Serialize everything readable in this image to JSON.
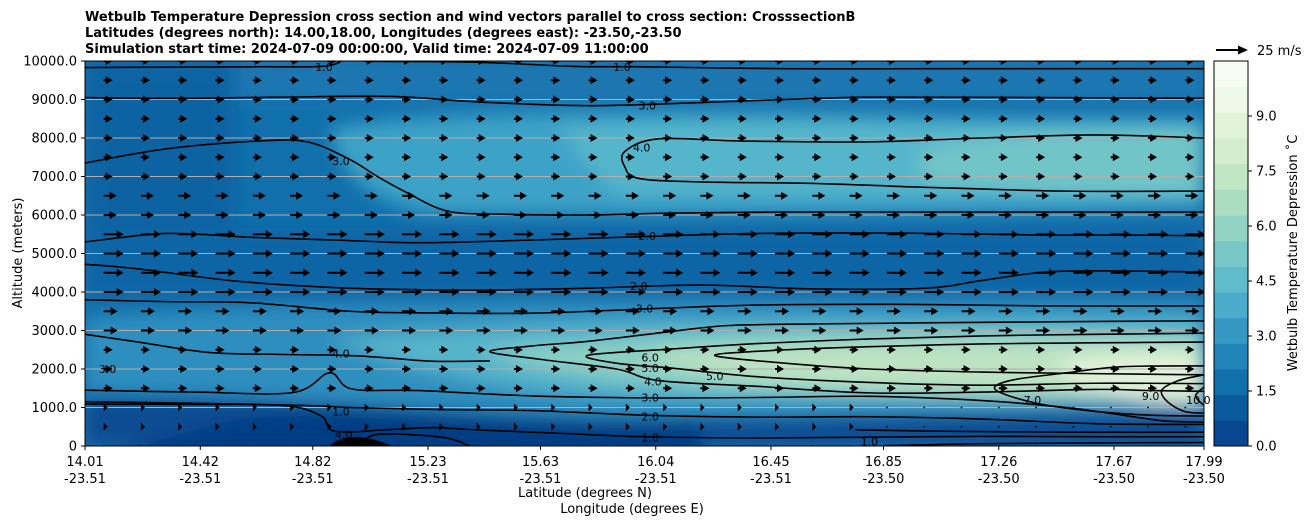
{
  "chart_data": {
    "type": "contour",
    "title_lines": [
      "Wetbulb Temperature Depression cross section and wind vectors parallel to cross section: CrosssectionB",
      "Latitudes (degrees north): 14.00,18.00, Longitudes (degrees east): -23.50,-23.50",
      "Simulation start time: 2024-07-09 00:00:00, Valid time: 2024-07-09 11:00:00"
    ],
    "xlabel_lat": "Latitude (degrees N)",
    "xlabel_lon": "Longitude (degrees E)",
    "ylabel": "Altitude (meters)",
    "ylim": [
      0,
      10000
    ],
    "y_ticks": [
      0,
      1000,
      2000,
      3000,
      4000,
      5000,
      6000,
      7000,
      8000,
      9000,
      10000
    ],
    "y_tick_labels": [
      "0",
      "1000.0",
      "2000.0",
      "3000.0",
      "4000.0",
      "5000.0",
      "6000.0",
      "7000.0",
      "8000.0",
      "9000.0",
      "10000.0"
    ],
    "xlim": [
      14.01,
      17.99
    ],
    "x_ticks": [
      14.01,
      14.42,
      14.82,
      15.23,
      15.63,
      16.04,
      16.45,
      16.85,
      17.26,
      17.67,
      17.99
    ],
    "x_tick_lat": [
      "14.01",
      "14.42",
      "14.82",
      "15.23",
      "15.63",
      "16.04",
      "16.45",
      "16.85",
      "17.26",
      "17.67",
      "17.99"
    ],
    "x_tick_lon": [
      "-23.51",
      "-23.51",
      "-23.51",
      "-23.51",
      "-23.51",
      "-23.51",
      "-23.51",
      "-23.50",
      "-23.50",
      "-23.50",
      "-23.50"
    ],
    "colorbar": {
      "label": "Wetbulb Temperature Depression ˚C",
      "range": [
        0,
        10.5
      ],
      "ticks": [
        0,
        1.5,
        3,
        4.5,
        6,
        7.5,
        9
      ],
      "tick_labels": [
        "0.0",
        "1.5",
        "3.0",
        "4.5",
        "6.0",
        "7.5",
        "9.0"
      ],
      "colors": [
        "#08468f",
        "#0a5a9e",
        "#1170ac",
        "#2284b8",
        "#3597c2",
        "#4aabcb",
        "#60bbcb",
        "#79c8c7",
        "#93d3c3",
        "#acddc0",
        "#c1e6c4",
        "#d3edcd",
        "#e2f3d9",
        "#eef8e6",
        "#f7fcf0"
      ]
    },
    "wind_key": {
      "label": "25 m/s",
      "speed_ms": 25
    },
    "contour_labels": [
      {
        "text": "1.0",
        "x": 15.92,
        "y": 9850
      },
      {
        "text": "1.0",
        "x": 14.86,
        "y": 9850
      },
      {
        "text": "3.0",
        "x": 16.01,
        "y": 8850
      },
      {
        "text": "4.0",
        "x": 15.99,
        "y": 7750
      },
      {
        "text": "3.0",
        "x": 14.92,
        "y": 7400
      },
      {
        "text": "2.0",
        "x": 16.01,
        "y": 5450
      },
      {
        "text": "2.0",
        "x": 15.98,
        "y": 4150
      },
      {
        "text": "3.0",
        "x": 16.0,
        "y": 3570
      },
      {
        "text": "4.0",
        "x": 14.92,
        "y": 2400
      },
      {
        "text": "3.0",
        "x": 14.09,
        "y": 2000
      },
      {
        "text": "6.0",
        "x": 16.02,
        "y": 2300
      },
      {
        "text": "5.0",
        "x": 16.02,
        "y": 2030
      },
      {
        "text": "4.0",
        "x": 16.03,
        "y": 1680
      },
      {
        "text": "5.0",
        "x": 16.25,
        "y": 1820
      },
      {
        "text": "3.0",
        "x": 16.02,
        "y": 1260
      },
      {
        "text": "2.0",
        "x": 16.02,
        "y": 770
      },
      {
        "text": "1.0",
        "x": 16.02,
        "y": 220
      },
      {
        "text": "1.0",
        "x": 14.92,
        "y": 900
      },
      {
        "text": "4.0",
        "x": 14.93,
        "y": 300
      },
      {
        "text": "1.0",
        "x": 16.8,
        "y": 120
      },
      {
        "text": "7.0",
        "x": 17.38,
        "y": 1200
      },
      {
        "text": "9.0",
        "x": 17.8,
        "y": 1300
      },
      {
        "text": "10.0",
        "x": 17.97,
        "y": 1200
      }
    ],
    "contours": [
      {
        "level": 1.0,
        "points": [
          [
            14.01,
            9830
          ],
          [
            14.6,
            9850
          ],
          [
            14.85,
            9860
          ],
          [
            14.92,
            9980
          ]
        ]
      },
      {
        "level": 1.0,
        "points": [
          [
            15.02,
            9990
          ],
          [
            15.4,
            9970
          ],
          [
            15.75,
            9860
          ],
          [
            16.0,
            9850
          ],
          [
            16.5,
            9800
          ],
          [
            17.0,
            9800
          ],
          [
            17.5,
            9800
          ],
          [
            17.99,
            9800
          ]
        ]
      },
      {
        "level": 3.0,
        "points": [
          [
            14.01,
            9050
          ],
          [
            14.35,
            9030
          ],
          [
            14.7,
            9060
          ],
          [
            15.1,
            9080
          ],
          [
            15.4,
            8940
          ],
          [
            15.8,
            8840
          ],
          [
            16.2,
            8920
          ],
          [
            16.5,
            9000
          ],
          [
            16.8,
            9060
          ],
          [
            17.4,
            9050
          ],
          [
            17.99,
            9030
          ]
        ]
      },
      {
        "level": 3.0,
        "points": [
          [
            14.01,
            7350
          ],
          [
            14.3,
            7720
          ],
          [
            14.62,
            7920
          ],
          [
            14.8,
            7900
          ],
          [
            14.95,
            7450
          ],
          [
            15.05,
            7000
          ],
          [
            15.15,
            6600
          ],
          [
            15.3,
            6100
          ],
          [
            15.5,
            6020
          ],
          [
            15.8,
            6000
          ],
          [
            16.1,
            6050
          ],
          [
            16.5,
            6080
          ],
          [
            17.0,
            6080
          ],
          [
            17.5,
            6080
          ],
          [
            17.99,
            6080
          ]
        ]
      },
      {
        "level": 4.0,
        "points": [
          [
            17.99,
            8000
          ],
          [
            17.6,
            8080
          ],
          [
            17.2,
            8000
          ],
          [
            16.8,
            7900
          ],
          [
            16.35,
            7920
          ],
          [
            16.05,
            7980
          ],
          [
            15.93,
            7650
          ],
          [
            15.93,
            7250
          ],
          [
            15.98,
            6950
          ],
          [
            16.2,
            6860
          ],
          [
            16.6,
            6820
          ],
          [
            17.0,
            6720
          ],
          [
            17.5,
            6620
          ],
          [
            17.99,
            6620
          ]
        ]
      },
      {
        "level": 2.0,
        "points": [
          [
            14.01,
            5300
          ],
          [
            14.3,
            5520
          ],
          [
            14.6,
            5420
          ],
          [
            14.9,
            5350
          ],
          [
            15.2,
            5280
          ],
          [
            15.6,
            5350
          ],
          [
            16.0,
            5440
          ],
          [
            16.4,
            5520
          ],
          [
            16.9,
            5530
          ],
          [
            17.4,
            5480
          ],
          [
            17.7,
            5480
          ],
          [
            17.99,
            5460
          ]
        ]
      },
      {
        "level": 2.0,
        "points": [
          [
            14.01,
            4720
          ],
          [
            14.2,
            4600
          ],
          [
            14.55,
            4280
          ],
          [
            14.95,
            4100
          ],
          [
            15.4,
            4050
          ],
          [
            15.8,
            4100
          ],
          [
            16.2,
            4180
          ],
          [
            16.6,
            4080
          ],
          [
            17.0,
            4100
          ],
          [
            17.2,
            4300
          ],
          [
            17.4,
            4500
          ],
          [
            17.6,
            4550
          ],
          [
            17.99,
            4520
          ]
        ]
      },
      {
        "level": 3.0,
        "points": [
          [
            14.01,
            3800
          ],
          [
            14.3,
            3750
          ],
          [
            14.6,
            3720
          ],
          [
            14.95,
            3500
          ],
          [
            15.2,
            3460
          ],
          [
            15.6,
            3450
          ],
          [
            16.0,
            3560
          ],
          [
            16.4,
            3660
          ],
          [
            16.9,
            3680
          ],
          [
            17.4,
            3640
          ],
          [
            17.99,
            3640
          ]
        ]
      },
      {
        "level": 4.0,
        "points": [
          [
            17.99,
            3250
          ],
          [
            17.5,
            3230
          ],
          [
            17.0,
            3200
          ],
          [
            16.6,
            3170
          ],
          [
            16.3,
            3130
          ],
          [
            16.1,
            2980
          ],
          [
            15.8,
            2720
          ],
          [
            15.6,
            2600
          ],
          [
            15.45,
            2450
          ],
          [
            15.63,
            2250
          ],
          [
            15.9,
            2000
          ],
          [
            16.05,
            1700
          ],
          [
            16.4,
            1550
          ],
          [
            16.8,
            1380
          ],
          [
            17.2,
            1400
          ],
          [
            17.6,
            1470
          ],
          [
            17.8,
            1440
          ],
          [
            17.99,
            1420
          ]
        ]
      },
      {
        "level": 5.0,
        "points": [
          [
            17.99,
            2930
          ],
          [
            17.6,
            2900
          ],
          [
            17.2,
            2860
          ],
          [
            16.8,
            2780
          ],
          [
            16.4,
            2660
          ],
          [
            16.1,
            2520
          ],
          [
            15.8,
            2360
          ],
          [
            15.9,
            2150
          ],
          [
            16.1,
            2020
          ],
          [
            16.4,
            1800
          ],
          [
            16.8,
            1650
          ],
          [
            17.2,
            1580
          ],
          [
            17.6,
            1630
          ],
          [
            17.99,
            1620
          ]
        ]
      },
      {
        "level": 6.0,
        "points": [
          [
            17.99,
            2700
          ],
          [
            17.6,
            2680
          ],
          [
            17.2,
            2650
          ],
          [
            16.8,
            2580
          ],
          [
            16.45,
            2480
          ],
          [
            16.25,
            2350
          ],
          [
            16.5,
            2150
          ],
          [
            16.8,
            2000
          ],
          [
            17.2,
            1920
          ],
          [
            17.6,
            1880
          ],
          [
            17.99,
            1850
          ]
        ]
      },
      {
        "level": 7.0,
        "points": [
          [
            17.99,
            2080
          ],
          [
            17.7,
            2060
          ],
          [
            17.5,
            1900
          ],
          [
            17.3,
            1700
          ],
          [
            17.25,
            1450
          ],
          [
            17.4,
            1100
          ],
          [
            17.6,
            900
          ],
          [
            17.8,
            800
          ],
          [
            17.99,
            780
          ]
        ]
      },
      {
        "level": 9.0,
        "points": [
          [
            17.99,
            1850
          ],
          [
            17.9,
            1700
          ],
          [
            17.84,
            1450
          ],
          [
            17.86,
            1150
          ],
          [
            17.92,
            900
          ],
          [
            17.99,
            850
          ]
        ]
      },
      {
        "level": 10.0,
        "points": [
          [
            17.99,
            1530
          ],
          [
            17.96,
            1300
          ],
          [
            17.99,
            1050
          ]
        ]
      },
      {
        "level": 4.0,
        "points": [
          [
            14.01,
            2900
          ],
          [
            14.2,
            2700
          ],
          [
            14.45,
            2430
          ],
          [
            14.7,
            2380
          ],
          [
            14.95,
            2350
          ],
          [
            15.1,
            2280
          ],
          [
            15.25,
            2200
          ],
          [
            15.45,
            2210
          ]
        ]
      },
      {
        "level": 3.0,
        "points": [
          [
            14.01,
            1450
          ],
          [
            14.4,
            1400
          ],
          [
            14.75,
            1390
          ],
          [
            14.88,
            1900
          ],
          [
            14.96,
            1480
          ],
          [
            15.2,
            1440
          ],
          [
            15.6,
            1300
          ],
          [
            16.0,
            1250
          ],
          [
            16.4,
            1260
          ],
          [
            16.8,
            1290
          ],
          [
            17.2,
            1180
          ],
          [
            17.5,
            1000
          ],
          [
            17.7,
            800
          ],
          [
            17.85,
            650
          ],
          [
            17.99,
            620
          ]
        ]
      },
      {
        "level": 2.0,
        "points": [
          [
            14.01,
            1150
          ],
          [
            14.4,
            1110
          ],
          [
            14.8,
            1050
          ],
          [
            14.95,
            1000
          ],
          [
            15.25,
            950
          ],
          [
            15.6,
            920
          ],
          [
            16.0,
            800
          ],
          [
            16.4,
            750
          ],
          [
            16.8,
            760
          ],
          [
            17.2,
            700
          ],
          [
            17.6,
            580
          ],
          [
            17.99,
            560
          ]
        ]
      },
      {
        "level": 1.0,
        "points": [
          [
            14.01,
            1090
          ],
          [
            14.4,
            1080
          ],
          [
            14.72,
            1050
          ],
          [
            14.85,
            780
          ],
          [
            14.9,
            380
          ],
          [
            15.1,
            430
          ],
          [
            15.25,
            480
          ],
          [
            15.4,
            420
          ],
          [
            15.7,
            330
          ],
          [
            16.0,
            240
          ],
          [
            16.4,
            210
          ],
          [
            16.8,
            230
          ],
          [
            17.2,
            250
          ],
          [
            17.6,
            240
          ],
          [
            17.99,
            240
          ]
        ]
      },
      {
        "level": 1.0,
        "points": [
          [
            14.99,
            0
          ],
          [
            15.05,
            300
          ],
          [
            15.28,
            230
          ],
          [
            15.38,
            0
          ]
        ]
      },
      {
        "level": 1.0,
        "points": [
          [
            16.85,
            10
          ],
          [
            17.2,
            60
          ],
          [
            17.6,
            80
          ],
          [
            17.99,
            90
          ]
        ]
      },
      {
        "level": 0.5,
        "points": [
          [
            16.75,
            420
          ],
          [
            17.1,
            380
          ],
          [
            17.5,
            360
          ],
          [
            17.99,
            360
          ]
        ]
      }
    ]
  }
}
